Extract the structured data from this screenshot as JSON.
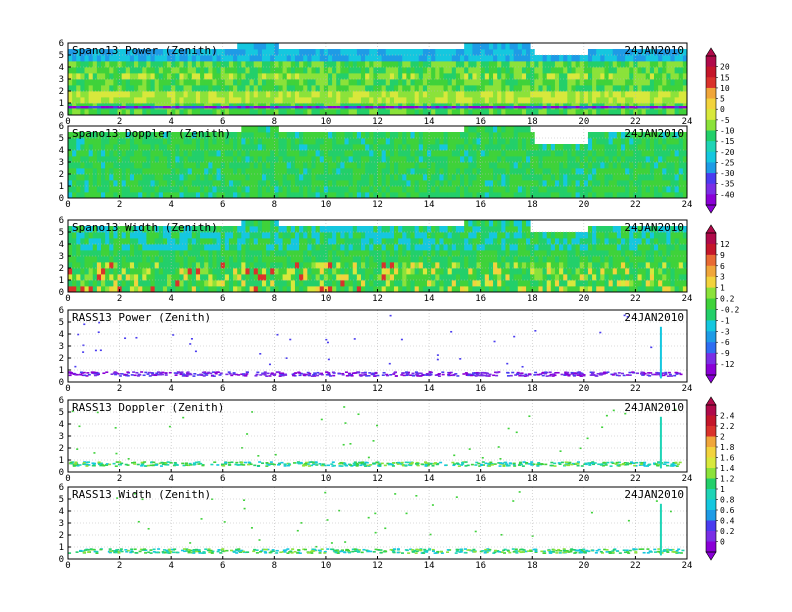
{
  "date_label": "24JAN2010",
  "colors": {
    "palette": [
      "#8a00d6",
      "#7a2ee6",
      "#4a3cf0",
      "#2f6df2",
      "#1e9be6",
      "#15c7df",
      "#1fd4b6",
      "#23cf6a",
      "#3fd23a",
      "#8be23a",
      "#d8e83c",
      "#f2d33d",
      "#f0a63a",
      "#e86a33",
      "#d9322b",
      "#c4162a",
      "#b00a4a"
    ],
    "frame": "#000000",
    "grid": "#b8b8b8"
  },
  "chart_data": [
    {
      "type": "heatmap",
      "title": "Spano13 Power (Zenith)",
      "xlim": [
        0,
        24
      ],
      "ylim": [
        0,
        6
      ],
      "xticks": [
        "0",
        "2",
        "4",
        "6",
        "8",
        "10",
        "12",
        "14",
        "16",
        "18",
        "20",
        "22",
        "24"
      ],
      "yticks": [
        "0",
        "1",
        "2",
        "3",
        "4",
        "5",
        "6"
      ],
      "fill": "dense",
      "top_profile": [
        [
          0,
          5.6
        ],
        [
          2,
          5.6
        ],
        [
          4,
          5.6
        ],
        [
          6,
          5.6
        ],
        [
          6.6,
          5.9
        ],
        [
          8,
          6
        ],
        [
          8.1,
          5.6
        ],
        [
          15.2,
          5.6
        ],
        [
          15.3,
          6
        ],
        [
          17.9,
          6
        ],
        [
          18,
          5.6
        ],
        [
          18.1,
          5.1
        ],
        [
          20,
          5.1
        ],
        [
          20.1,
          5.7
        ],
        [
          24,
          5.7
        ]
      ]
    },
    {
      "type": "heatmap",
      "title": "Spano13 Doppler (Zenith)",
      "xlim": [
        0,
        24
      ],
      "ylim": [
        0,
        6
      ],
      "xticks": [
        "0",
        "2",
        "4",
        "6",
        "8",
        "10",
        "12",
        "14",
        "16",
        "18",
        "20",
        "22",
        "24"
      ],
      "yticks": [
        "0",
        "1",
        "2",
        "3",
        "4",
        "5",
        "6"
      ],
      "fill": "dense",
      "top_profile": [
        [
          0,
          5.4
        ],
        [
          6,
          5.4
        ],
        [
          6.8,
          5.8
        ],
        [
          8,
          6
        ],
        [
          8.1,
          5.4
        ],
        [
          15.2,
          5.4
        ],
        [
          15.3,
          6
        ],
        [
          17.9,
          6
        ],
        [
          18,
          5.4
        ],
        [
          18.1,
          4.7
        ],
        [
          20,
          4.7
        ],
        [
          20.1,
          5.6
        ],
        [
          24,
          5.6
        ]
      ]
    },
    {
      "type": "heatmap",
      "title": "Spano13 Width (Zenith)",
      "xlim": [
        0,
        24
      ],
      "ylim": [
        0,
        6
      ],
      "xticks": [
        "0",
        "2",
        "4",
        "6",
        "8",
        "10",
        "12",
        "14",
        "16",
        "18",
        "20",
        "22",
        "24"
      ],
      "yticks": [
        "0",
        "1",
        "2",
        "3",
        "4",
        "5",
        "6"
      ],
      "fill": "dense",
      "top_profile": [
        [
          0,
          5.6
        ],
        [
          6,
          5.6
        ],
        [
          6.8,
          5.9
        ],
        [
          8,
          6
        ],
        [
          8.1,
          5.6
        ],
        [
          15.2,
          5.6
        ],
        [
          15.3,
          6
        ],
        [
          17.9,
          6
        ],
        [
          18,
          5.2
        ],
        [
          20,
          5.2
        ],
        [
          20.1,
          5.7
        ],
        [
          24,
          5.7
        ]
      ]
    },
    {
      "type": "heatmap",
      "title": "RASS13 Power (Zenith)",
      "xlim": [
        0,
        24
      ],
      "ylim": [
        0,
        6
      ],
      "xticks": [
        "0",
        "2",
        "4",
        "6",
        "8",
        "10",
        "12",
        "14",
        "16",
        "18",
        "20",
        "22",
        "24"
      ],
      "yticks": [
        "0",
        "1",
        "2",
        "3",
        "4",
        "5",
        "6"
      ],
      "fill": "sparse"
    },
    {
      "type": "heatmap",
      "title": "RASS13 Doppler (Zenith)",
      "xlim": [
        0,
        24
      ],
      "ylim": [
        0,
        6
      ],
      "xticks": [
        "0",
        "2",
        "4",
        "6",
        "8",
        "10",
        "12",
        "14",
        "16",
        "18",
        "20",
        "22",
        "24"
      ],
      "yticks": [
        "0",
        "1",
        "2",
        "3",
        "4",
        "5",
        "6"
      ],
      "fill": "sparse"
    },
    {
      "type": "heatmap",
      "title": "RASS13 Width (Zenith)",
      "xlim": [
        0,
        24
      ],
      "ylim": [
        0,
        6
      ],
      "xticks": [
        "0",
        "2",
        "4",
        "6",
        "8",
        "10",
        "12",
        "14",
        "16",
        "18",
        "20",
        "22",
        "24"
      ],
      "yticks": [
        "0",
        "1",
        "2",
        "3",
        "4",
        "5",
        "6"
      ],
      "fill": "sparse"
    }
  ],
  "colorbars": [
    {
      "ticks": [
        "20",
        "15",
        "10",
        "5",
        "0",
        "-5",
        "-10",
        "-15",
        "-20",
        "-25",
        "-30",
        "-35",
        "-40"
      ]
    },
    {
      "ticks": [
        "12",
        "9",
        "6",
        "3",
        "1",
        "0.2",
        "-0.2",
        "-1",
        "-3",
        "-6",
        "-9",
        "-12"
      ]
    },
    {
      "ticks": [
        "2.4",
        "2.2",
        "2",
        "1.8",
        "1.6",
        "1.4",
        "1.2",
        "1",
        "0.8",
        "0.6",
        "0.4",
        "0.2",
        "0"
      ]
    }
  ]
}
